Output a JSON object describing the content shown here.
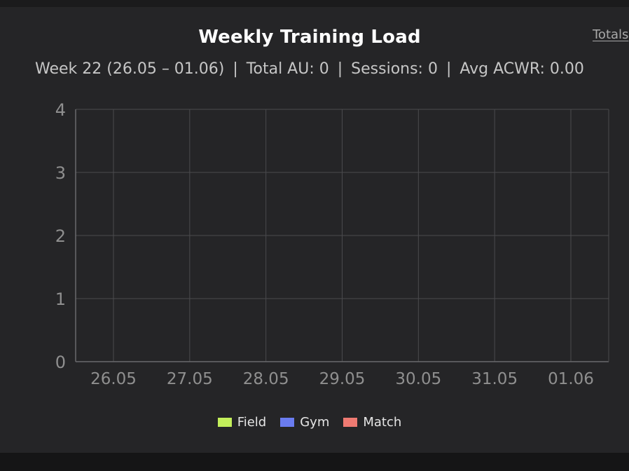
{
  "header": {
    "title": "Weekly Training Load",
    "totals_link": "Totals"
  },
  "summary": {
    "week": "Week 22 (26.05 – 01.06)",
    "total_au": "Total AU: 0",
    "sessions": "Sessions: 0",
    "avg_acwr": "Avg ACWR: 0.00",
    "separator": "|"
  },
  "chart_data": {
    "type": "bar",
    "categories": [
      "26.05",
      "27.05",
      "28.05",
      "29.05",
      "30.05",
      "31.05",
      "01.06"
    ],
    "series": [
      {
        "name": "Field",
        "values": [
          0,
          0,
          0,
          0,
          0,
          0,
          0
        ],
        "color": "#c3ef5b"
      },
      {
        "name": "Gym",
        "values": [
          0,
          0,
          0,
          0,
          0,
          0,
          0
        ],
        "color": "#6a7cf0"
      },
      {
        "name": "Match",
        "values": [
          0,
          0,
          0,
          0,
          0,
          0,
          0
        ],
        "color": "#ef7a72"
      }
    ],
    "stacked": true,
    "ylim": [
      0,
      4
    ],
    "yticks": [
      0,
      1,
      2,
      3,
      4
    ],
    "grid": true,
    "legend": "bottom"
  },
  "colors": {
    "background": "#252527",
    "grid": "#4a4a4d",
    "tick_text": "#8f8f8f"
  }
}
